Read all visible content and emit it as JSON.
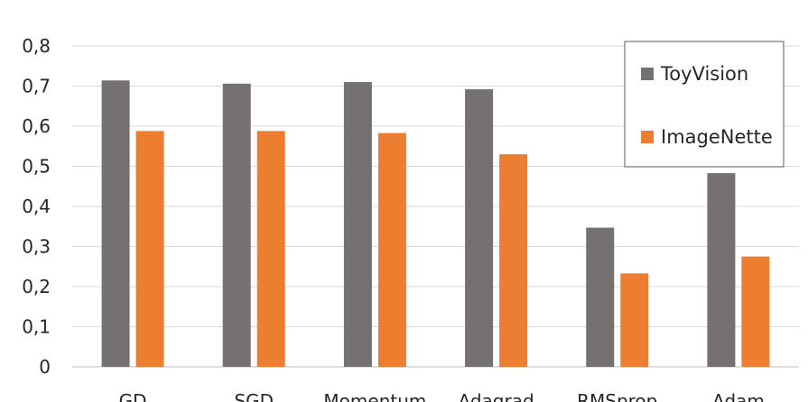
{
  "chart_data": {
    "type": "bar",
    "categories": [
      "GD",
      "SGD",
      "Momentum",
      "Adagrad",
      "RMSprop",
      "Adam"
    ],
    "series": [
      {
        "name": "ToyVision",
        "color": "#767171",
        "values": [
          0.714,
          0.706,
          0.71,
          0.692,
          0.347,
          0.483
        ]
      },
      {
        "name": "ImageNette",
        "color": "#ED7D31",
        "values": [
          0.588,
          0.588,
          0.583,
          0.53,
          0.233,
          0.275
        ]
      }
    ],
    "ylim": [
      0,
      0.8
    ],
    "yticks": [
      0,
      0.1,
      0.2,
      0.3,
      0.4,
      0.5,
      0.6,
      0.7,
      0.8
    ],
    "ytick_labels": [
      "0",
      "0,1",
      "0,2",
      "0,3",
      "0,4",
      "0,5",
      "0,6",
      "0,7",
      "0,8"
    ],
    "grid": true,
    "legend": "top-right"
  }
}
